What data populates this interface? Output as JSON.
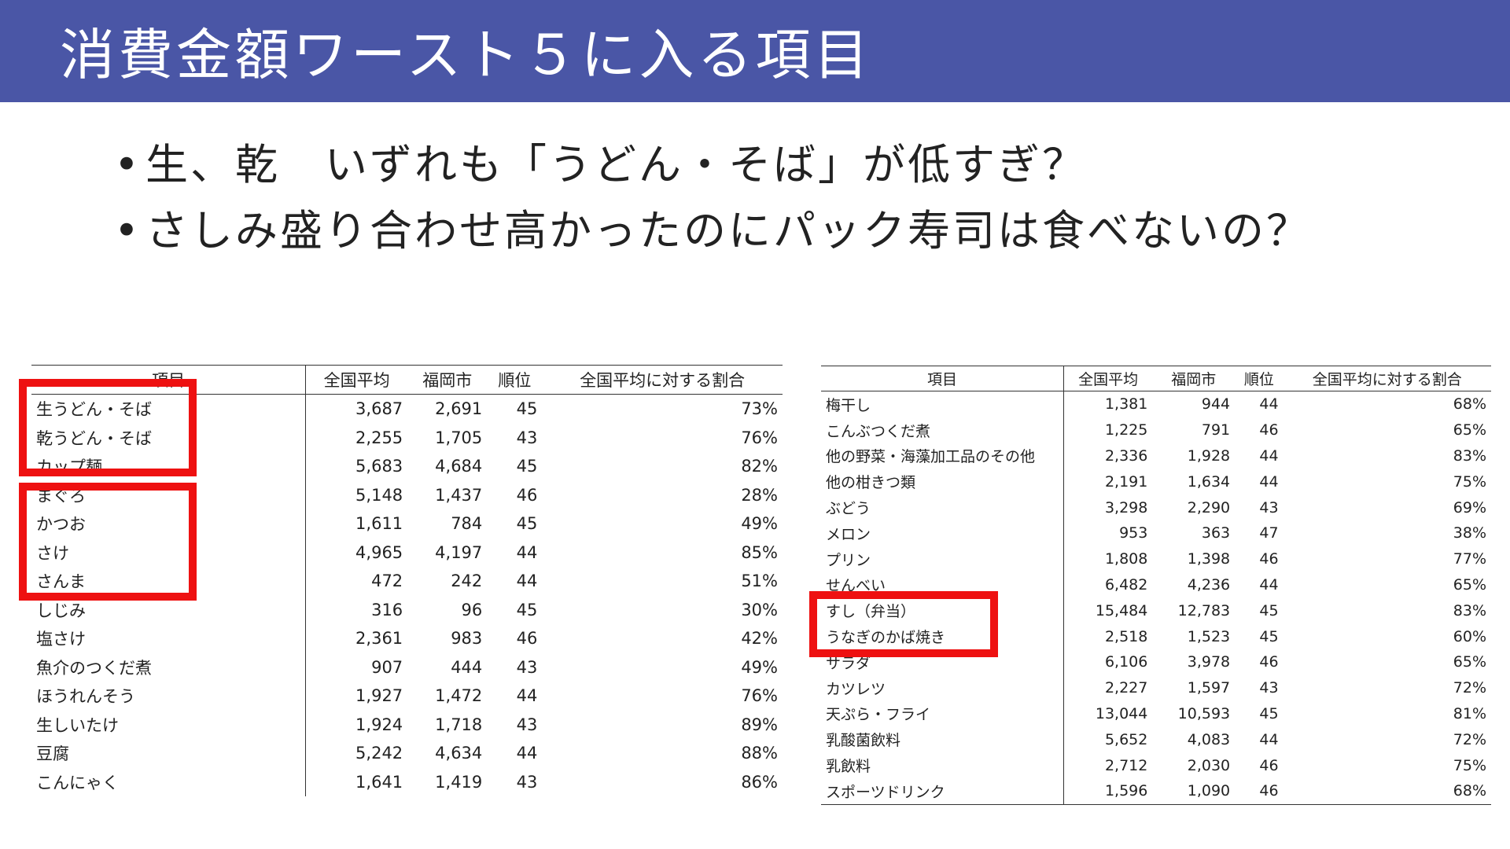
{
  "title": "消費金額ワースト５に入る項目",
  "bullets": [
    "生、乾　いずれも「うどん・そば」が低すぎ？",
    "さしみ盛り合わせ高かったのにパック寿司は食べないの？"
  ],
  "highlight_color": "#ee1111",
  "title_bar_color": "#4a56a6",
  "left_table": {
    "headers": [
      "項目",
      "全国平均",
      "福岡市",
      "順位",
      "全国平均に対する割合"
    ],
    "rows": [
      [
        "生うどん・そば",
        "3,687",
        "2,691",
        "45",
        "73%"
      ],
      [
        "乾うどん・そば",
        "2,255",
        "1,705",
        "43",
        "76%"
      ],
      [
        "カップ麺",
        "5,683",
        "4,684",
        "45",
        "82%"
      ],
      [
        "まぐろ",
        "5,148",
        "1,437",
        "46",
        "28%"
      ],
      [
        "かつお",
        "1,611",
        "784",
        "45",
        "49%"
      ],
      [
        "さけ",
        "4,965",
        "4,197",
        "44",
        "85%"
      ],
      [
        "さんま",
        "472",
        "242",
        "44",
        "51%"
      ],
      [
        "しじみ",
        "316",
        "96",
        "45",
        "30%"
      ],
      [
        "塩さけ",
        "2,361",
        "983",
        "46",
        "42%"
      ],
      [
        "魚介のつくだ煮",
        "907",
        "444",
        "43",
        "49%"
      ],
      [
        "ほうれんそう",
        "1,927",
        "1,472",
        "44",
        "76%"
      ],
      [
        "生しいたけ",
        "1,924",
        "1,718",
        "43",
        "89%"
      ],
      [
        "豆腐",
        "5,242",
        "4,634",
        "44",
        "88%"
      ],
      [
        "こんにゃく",
        "1,641",
        "1,419",
        "43",
        "86%"
      ]
    ]
  },
  "right_table": {
    "headers": [
      "項目",
      "全国平均",
      "福岡市",
      "順位",
      "全国平均に対する割合"
    ],
    "rows": [
      [
        "梅干し",
        "1,381",
        "944",
        "44",
        "68%"
      ],
      [
        "こんぶつくだ煮",
        "1,225",
        "791",
        "46",
        "65%"
      ],
      [
        "他の野菜・海藻加工品のその他",
        "2,336",
        "1,928",
        "44",
        "83%"
      ],
      [
        "他の柑きつ類",
        "2,191",
        "1,634",
        "44",
        "75%"
      ],
      [
        "ぶどう",
        "3,298",
        "2,290",
        "43",
        "69%"
      ],
      [
        "メロン",
        "953",
        "363",
        "47",
        "38%"
      ],
      [
        "プリン",
        "1,808",
        "1,398",
        "46",
        "77%"
      ],
      [
        "せんべい",
        "6,482",
        "4,236",
        "44",
        "65%"
      ],
      [
        "すし（弁当）",
        "15,484",
        "12,783",
        "45",
        "83%"
      ],
      [
        "うなぎのかば焼き",
        "2,518",
        "1,523",
        "45",
        "60%"
      ],
      [
        "サラダ",
        "6,106",
        "3,978",
        "46",
        "65%"
      ],
      [
        "カツレツ",
        "2,227",
        "1,597",
        "43",
        "72%"
      ],
      [
        "天ぷら・フライ",
        "13,044",
        "10,593",
        "45",
        "81%"
      ],
      [
        "乳酸菌飲料",
        "5,652",
        "4,083",
        "44",
        "72%"
      ],
      [
        "乳飲料",
        "2,712",
        "2,030",
        "46",
        "75%"
      ],
      [
        "スポーツドリンク",
        "1,596",
        "1,090",
        "46",
        "68%"
      ]
    ]
  }
}
